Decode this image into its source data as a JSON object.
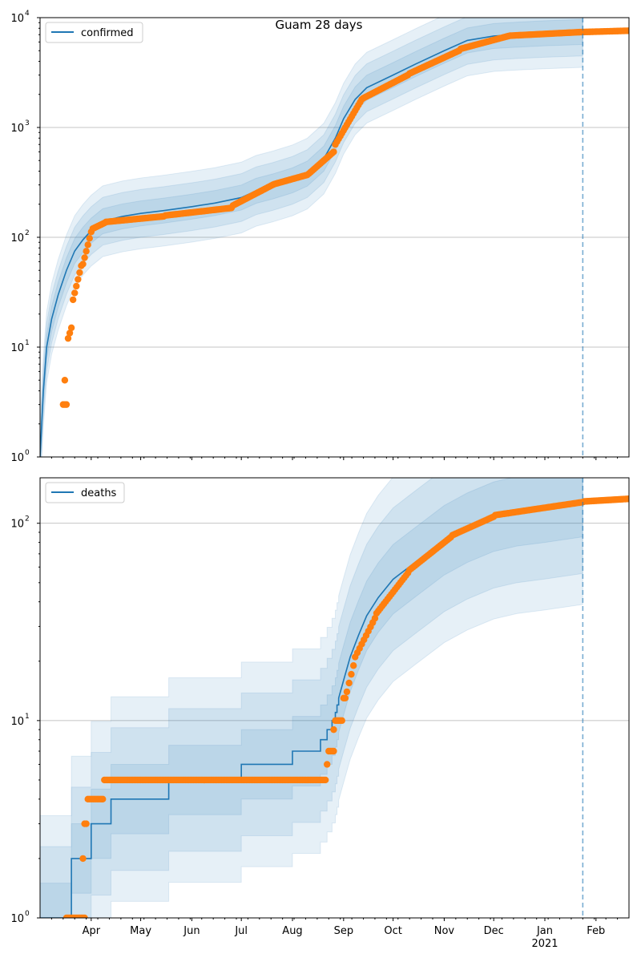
{
  "figure_title": "Guam 28 days",
  "colors": {
    "model": "#1f77b4",
    "observed": "#ff7f0e",
    "band": "#1f77b4",
    "grid": "#b0b0b0",
    "forecast_line": "#1f77b4"
  },
  "chart_data": [
    {
      "type": "line",
      "panel": "confirmed",
      "legend": "confirmed",
      "legend_position": "top-left",
      "yscale": "log",
      "ylim": [
        1,
        10000
      ],
      "yticks": [
        {
          "value": 1,
          "base": "10",
          "exp": "0"
        },
        {
          "value": 10,
          "base": "10",
          "exp": "1"
        },
        {
          "value": 100,
          "base": "10",
          "exp": "2"
        },
        {
          "value": 1000,
          "base": "10",
          "exp": "3"
        },
        {
          "value": 10000,
          "base": "10",
          "exp": "4"
        }
      ],
      "xlim": [
        "2020-03-01",
        "2021-02-21"
      ],
      "grid": "horizontal",
      "forecast_start": "2021-01-24",
      "model": [
        [
          "2020-03-01",
          1
        ],
        [
          "2020-03-03",
          4
        ],
        [
          "2020-03-05",
          10
        ],
        [
          "2020-03-08",
          18
        ],
        [
          "2020-03-12",
          30
        ],
        [
          "2020-03-17",
          50
        ],
        [
          "2020-03-22",
          75
        ],
        [
          "2020-03-27",
          95
        ],
        [
          "2020-04-01",
          115
        ],
        [
          "2020-04-08",
          140
        ],
        [
          "2020-04-20",
          155
        ],
        [
          "2020-05-01",
          165
        ],
        [
          "2020-05-15",
          175
        ],
        [
          "2020-06-01",
          190
        ],
        [
          "2020-06-15",
          205
        ],
        [
          "2020-07-01",
          230
        ],
        [
          "2020-07-10",
          265
        ],
        [
          "2020-07-20",
          290
        ],
        [
          "2020-08-01",
          330
        ],
        [
          "2020-08-10",
          380
        ],
        [
          "2020-08-20",
          520
        ],
        [
          "2020-08-27",
          800
        ],
        [
          "2020-09-01",
          1200
        ],
        [
          "2020-09-08",
          1800
        ],
        [
          "2020-09-15",
          2300
        ],
        [
          "2020-10-01",
          3000
        ],
        [
          "2020-10-15",
          3800
        ],
        [
          "2020-11-01",
          5000
        ],
        [
          "2020-11-15",
          6200
        ],
        [
          "2020-12-01",
          6800
        ],
        [
          "2020-12-15",
          7000
        ],
        [
          "2021-01-01",
          7200
        ],
        [
          "2021-01-24",
          7400
        ]
      ],
      "band_multipliers": [
        1.3,
        1.65,
        2.1
      ],
      "observed_segments": [
        [
          "2020-03-15",
          3,
          "2020-03-17",
          3,
          3
        ],
        [
          "2020-03-16",
          5,
          "2020-03-16",
          5,
          1
        ],
        [
          "2020-03-18",
          12,
          "2020-03-20",
          15,
          3
        ],
        [
          "2020-03-21",
          27,
          "2020-03-26",
          55,
          6
        ],
        [
          "2020-03-27",
          57,
          "2020-04-01",
          112,
          6
        ],
        [
          "2020-04-02",
          120,
          "2020-04-09",
          135,
          8
        ],
        [
          "2020-04-10",
          138,
          "2020-05-15",
          155,
          36
        ],
        [
          "2020-05-16",
          158,
          "2020-06-25",
          185,
          41
        ],
        [
          "2020-06-26",
          195,
          "2020-07-20",
          300,
          25
        ],
        [
          "2020-07-21",
          305,
          "2020-08-10",
          370,
          21
        ],
        [
          "2020-08-11",
          380,
          "2020-08-26",
          600,
          16
        ],
        [
          "2020-08-27",
          700,
          "2020-09-12",
          1800,
          17
        ],
        [
          "2020-09-13",
          1850,
          "2020-10-10",
          3000,
          28
        ],
        [
          "2020-10-11",
          3100,
          "2020-11-10",
          5000,
          31
        ],
        [
          "2020-11-11",
          5200,
          "2020-12-10",
          6800,
          30
        ],
        [
          "2020-12-11",
          6850,
          "2021-01-24",
          7400,
          45
        ],
        [
          "2021-01-25",
          7400,
          "2021-02-21",
          7600,
          28
        ]
      ]
    },
    {
      "type": "line",
      "panel": "deaths",
      "legend": "deaths",
      "legend_position": "top-left",
      "yscale": "log",
      "ylim": [
        1,
        170
      ],
      "yticks": [
        {
          "value": 1,
          "base": "10",
          "exp": "0"
        },
        {
          "value": 10,
          "base": "10",
          "exp": "1"
        },
        {
          "value": 100,
          "base": "10",
          "exp": "2"
        }
      ],
      "xlim": [
        "2020-03-01",
        "2021-02-21"
      ],
      "xticks": [
        {
          "date": "2020-04-01",
          "label": "Apr"
        },
        {
          "date": "2020-05-01",
          "label": "May"
        },
        {
          "date": "2020-06-01",
          "label": "Jun"
        },
        {
          "date": "2020-07-01",
          "label": "Jul"
        },
        {
          "date": "2020-08-01",
          "label": "Aug"
        },
        {
          "date": "2020-09-01",
          "label": "Sep"
        },
        {
          "date": "2020-10-01",
          "label": "Oct"
        },
        {
          "date": "2020-11-01",
          "label": "Nov"
        },
        {
          "date": "2020-12-01",
          "label": "Dec"
        },
        {
          "date": "2021-01-01",
          "label": "Jan",
          "sub": "2021"
        },
        {
          "date": "2021-02-01",
          "label": "Feb"
        }
      ],
      "grid": "horizontal",
      "forecast_start": "2021-01-24",
      "model_steps": [
        [
          "2020-03-01",
          1
        ],
        [
          "2020-03-20",
          2
        ],
        [
          "2020-04-01",
          3
        ],
        [
          "2020-04-13",
          4
        ],
        [
          "2020-05-18",
          5
        ],
        [
          "2020-07-01",
          6
        ],
        [
          "2020-08-01",
          7
        ],
        [
          "2020-08-18",
          8
        ],
        [
          "2020-08-22",
          9
        ],
        [
          "2020-08-25",
          10
        ],
        [
          "2020-08-27",
          11
        ],
        [
          "2020-08-28",
          12
        ]
      ],
      "model": [
        [
          "2020-08-29",
          13
        ],
        [
          "2020-09-01",
          16
        ],
        [
          "2020-09-05",
          21
        ],
        [
          "2020-09-10",
          27
        ],
        [
          "2020-09-15",
          34
        ],
        [
          "2020-09-22",
          42
        ],
        [
          "2020-10-01",
          52
        ],
        [
          "2020-10-15",
          64
        ],
        [
          "2020-11-01",
          82
        ],
        [
          "2020-11-15",
          95
        ],
        [
          "2020-12-01",
          108
        ],
        [
          "2020-12-15",
          115
        ],
        [
          "2021-01-01",
          120
        ],
        [
          "2021-01-24",
          128
        ]
      ],
      "band_multipliers": [
        1.5,
        2.3,
        3.3
      ],
      "observed_segments": [
        [
          "2020-03-17",
          1,
          "2020-03-28",
          1,
          12
        ],
        [
          "2020-03-27",
          2,
          "2020-03-27",
          2,
          1
        ],
        [
          "2020-03-28",
          3,
          "2020-03-29",
          3,
          2
        ],
        [
          "2020-03-30",
          4,
          "2020-04-08",
          4,
          9
        ],
        [
          "2020-04-09",
          5,
          "2020-08-21",
          5,
          135
        ],
        [
          "2020-08-22",
          6,
          "2020-08-22",
          6,
          1
        ],
        [
          "2020-08-23",
          7,
          "2020-08-26",
          7,
          4
        ],
        [
          "2020-08-26",
          9,
          "2020-08-26",
          9,
          1
        ],
        [
          "2020-08-27",
          10,
          "2020-08-31",
          10,
          5
        ],
        [
          "2020-09-01",
          13,
          "2020-09-02",
          13,
          2
        ],
        [
          "2020-09-03",
          14,
          "2020-09-07",
          19,
          4
        ],
        [
          "2020-09-08",
          21,
          "2020-09-20",
          33,
          10
        ],
        [
          "2020-09-21",
          35,
          "2020-10-10",
          56,
          18
        ],
        [
          "2020-10-11",
          58,
          "2020-11-05",
          85,
          24
        ],
        [
          "2020-11-06",
          87,
          "2020-12-01",
          108,
          24
        ],
        [
          "2020-12-02",
          110,
          "2021-01-24",
          128,
          50
        ],
        [
          "2021-01-25",
          129,
          "2021-02-21",
          133,
          27
        ]
      ]
    }
  ]
}
